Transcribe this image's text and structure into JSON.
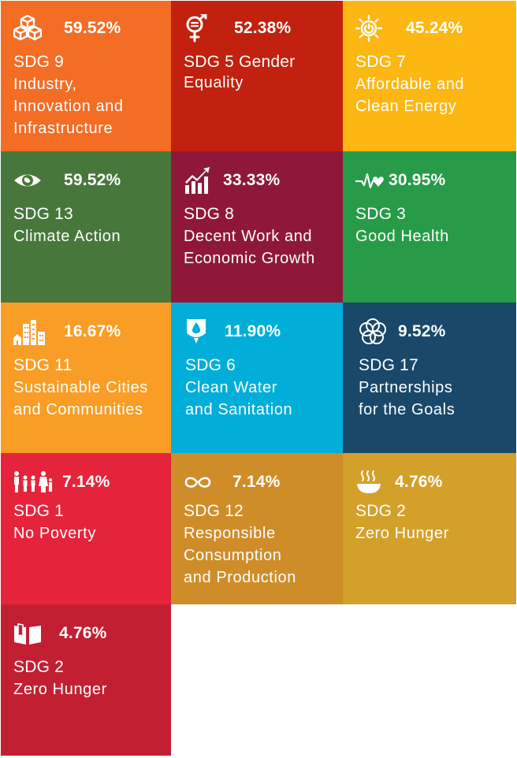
{
  "tiles": [
    {
      "percent": "59.52%",
      "code": "SDG 9",
      "name": "Industry,\nInnovation and\nInfrastructure",
      "color": "#F36D25",
      "icon": "cubes-icon"
    },
    {
      "percent": "52.38%",
      "code": "SDG 5 Gender",
      "name": "Equality",
      "color": "#C1210E",
      "icon": "gender-equality-icon"
    },
    {
      "percent": "45.24%",
      "code": "SDG 7",
      "name": "Affordable and\nClean Energy",
      "color": "#FDB713",
      "icon": "sun-power-icon"
    },
    {
      "percent": "59.52%",
      "code": "SDG 13",
      "name": "Climate Action",
      "color": "#48773C",
      "icon": "eye-globe-icon"
    },
    {
      "percent": "33.33%",
      "code": "SDG 8",
      "name": "Decent Work and\nEconomic Growth",
      "color": "#8F1838",
      "icon": "growth-chart-icon"
    },
    {
      "percent": "30.95%",
      "code": "SDG 3",
      "name": "Good Health",
      "color": "#279B48",
      "icon": "heartbeat-icon"
    },
    {
      "percent": "16.67%",
      "code": "SDG 11",
      "name": "Sustainable Cities\nand Communities",
      "color": "#F99D26",
      "icon": "city-icon"
    },
    {
      "percent": "11.90%",
      "code": "SDG 6",
      "name": "Clean Water\nand Sanitation",
      "color": "#00AED9",
      "icon": "water-drop-icon"
    },
    {
      "percent": "9.52%",
      "code": "SDG 17",
      "name": "Partnerships\nfor the Goals",
      "color": "#19486A",
      "icon": "flower-rings-icon"
    },
    {
      "percent": "7.14%",
      "code": "SDG 1",
      "name": "No Poverty",
      "color": "#E5243B",
      "icon": "family-icon"
    },
    {
      "percent": "7.14%",
      "code": "SDG 12",
      "name": "Responsible\nConsumption\nand Production",
      "color": "#CF8D2A",
      "icon": "infinity-loop-icon"
    },
    {
      "percent": "4.76%",
      "code": "SDG 2",
      "name": "Zero Hunger",
      "color": "#D3A029",
      "icon": "food-bowl-icon"
    },
    {
      "percent": "4.76%",
      "code": "SDG 2",
      "name": "Zero Hunger",
      "color": "#C31F33",
      "icon": "open-book-icon"
    }
  ]
}
